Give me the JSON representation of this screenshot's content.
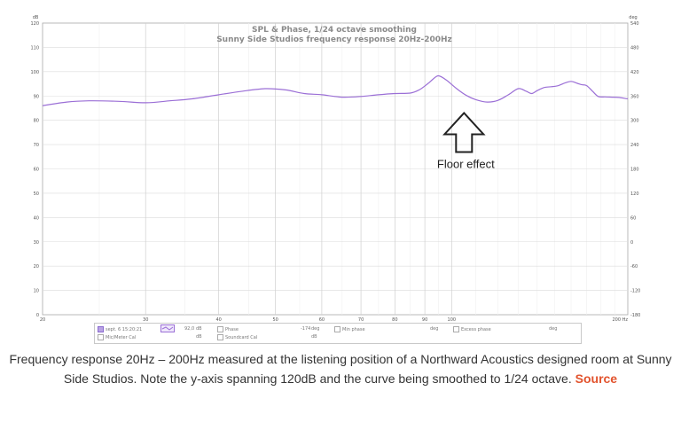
{
  "chart_data": {
    "type": "line",
    "title": "SPL & Phase, 1/24 octave smoothing",
    "subtitle": "Sunny Side Studios frequency response 20Hz-200Hz",
    "xlabel": "",
    "ylabel_left": "dB",
    "ylabel_right": "deg",
    "x_scale": "log",
    "xlim": [
      20,
      200
    ],
    "ylim": [
      0,
      120
    ],
    "y2lim": [
      -180,
      540
    ],
    "grid": true,
    "x_ticks": [
      20,
      30,
      40,
      50,
      60,
      70,
      80,
      90,
      100,
      200
    ],
    "x_tick_labels": [
      "20",
      "30",
      "40",
      "50",
      "60",
      "70",
      "80",
      "90",
      "100",
      "200 Hz"
    ],
    "y_ticks": [
      0,
      10,
      20,
      30,
      40,
      50,
      60,
      70,
      80,
      90,
      100,
      110,
      120
    ],
    "y2_ticks": [
      -180,
      -120,
      -60,
      0,
      60,
      120,
      180,
      240,
      300,
      360,
      420,
      480,
      540
    ],
    "series": [
      {
        "name": "sept. 6 15:20:21",
        "color": "#9b6fd6",
        "x": [
          20,
          22,
          24,
          27,
          30,
          33,
          36,
          40,
          44,
          48,
          52,
          56,
          60,
          65,
          70,
          75,
          80,
          85,
          88,
          91,
          93,
          95,
          98,
          102,
          106,
          110,
          115,
          120,
          125,
          130,
          134,
          137,
          140,
          144,
          148,
          152,
          156,
          160,
          164,
          167,
          170,
          174,
          178,
          183,
          188,
          193,
          200
        ],
        "y": [
          86,
          87.5,
          88,
          87.8,
          87.2,
          88,
          88.8,
          90.5,
          92,
          93,
          92.5,
          91,
          90.5,
          89.5,
          89.8,
          90.5,
          91,
          91.2,
          92.5,
          95,
          97,
          98.3,
          96.5,
          93,
          90.2,
          88.5,
          87.5,
          88.2,
          90.5,
          93,
          92,
          91,
          92.2,
          93.5,
          93.8,
          94.2,
          95.3,
          96,
          95.2,
          94.6,
          94.3,
          92,
          89.8,
          89.6,
          89.5,
          89.4,
          88.8
        ]
      }
    ],
    "annotations": [
      {
        "text": "Floor effect",
        "x": 105,
        "y": 83
      }
    ]
  },
  "legend": {
    "row1": {
      "series_name": "sept. 6 15:20:21",
      "value": "92,0",
      "value_unit": "dB",
      "phase_label": "Phase",
      "phase_value": "-174",
      "phase_unit": "deg",
      "min_phase_label": "Min phase",
      "min_phase_unit": "deg",
      "excess_phase_label": "Excess phase",
      "excess_phase_unit": "deg"
    },
    "row2": {
      "mic_cal_label": "Mic/Meter Cal",
      "mic_cal_unit": "dB",
      "soundcard_cal_label": "Soundcard Cal",
      "soundcard_cal_unit": "dB"
    }
  },
  "caption": {
    "text": "Frequency response 20Hz – 200Hz measured at the listening position of a Northward Acoustics designed room at Sunny Side Studios. Note the y-axis spanning 120dB and the curve being smoothed to 1/24 octave.",
    "link_label": "Source"
  },
  "colors": {
    "curve": "#9b6fd6",
    "grid": "#dcdcdc",
    "source_link": "#e2532d"
  }
}
